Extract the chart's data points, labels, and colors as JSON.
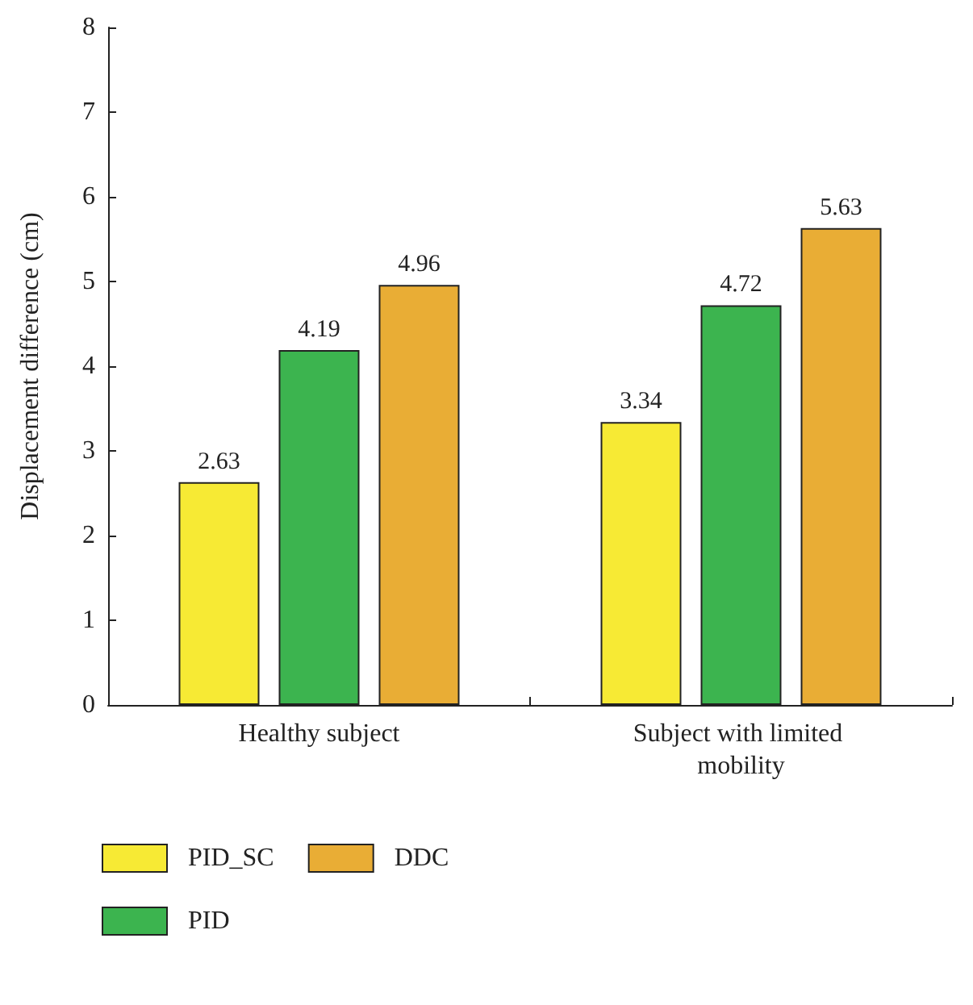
{
  "chart_data": {
    "type": "bar",
    "ylabel": "Displacement difference (cm)",
    "categories": [
      "Healthy subject",
      "Subject with limited mobility"
    ],
    "series": [
      {
        "name": "PID_SC",
        "color": "#f7ea34",
        "values": [
          2.63,
          3.34
        ]
      },
      {
        "name": "PID",
        "color": "#3cb44f",
        "values": [
          4.19,
          4.72
        ]
      },
      {
        "name": "DDC",
        "color": "#e9ad35",
        "values": [
          4.96,
          5.63
        ]
      }
    ],
    "ylim": [
      0,
      8
    ],
    "yticks": [
      0,
      1,
      2,
      3,
      4,
      5,
      6,
      7,
      8
    ],
    "data_labels": true,
    "grid": false,
    "legend": "bottom left"
  }
}
